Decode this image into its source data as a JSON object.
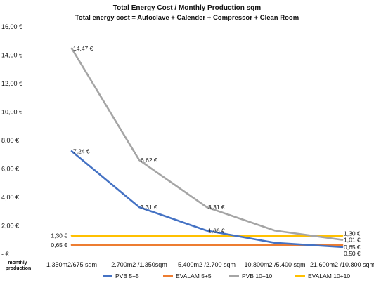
{
  "chart_data": {
    "type": "line",
    "title": "Total Energy Cost / Monthly Production sqm",
    "subtitle": "Total energy cost = Autoclave + Calender + Compressor + Clean Room",
    "xlabel": "monthly production",
    "ylabel": "",
    "categories": [
      "1.350m2/675 sqm",
      "2.700m2 /1.350sqm",
      "5.400m2 /2.700 sqm",
      "10.800m2 /5.400 sqm",
      "21.600m2 /10.800 sqm"
    ],
    "ylim": [
      0,
      16
    ],
    "yticks": [
      0,
      2,
      4,
      6,
      8,
      10,
      12,
      14,
      16
    ],
    "ytick_labels": [
      "-   €",
      "2,00 €",
      "4,00 €",
      "6,00 €",
      "8,00 €",
      "10,00 €",
      "12,00 €",
      "14,00 €",
      "16,00 €"
    ],
    "grid": false,
    "legend_position": "bottom",
    "series": [
      {
        "name": "PVB 5+5",
        "color": "#4472C4",
        "values": [
          7.24,
          3.31,
          1.66,
          0.8,
          0.5
        ],
        "point_labels": [
          "7,24 €",
          "3,31 €",
          "1,66 €",
          "",
          "0,50 €"
        ]
      },
      {
        "name": "EVALAM 5+5",
        "color": "#ED7D31",
        "values": [
          0.65,
          0.65,
          0.65,
          0.65,
          0.65
        ],
        "point_labels": [
          "0,65 €",
          "",
          "",
          "",
          "0,65 €"
        ]
      },
      {
        "name": "PVB 10+10",
        "color": "#A5A5A5",
        "values": [
          14.47,
          6.62,
          3.31,
          1.66,
          1.01
        ],
        "point_labels": [
          "14,47 €",
          "6,62 €",
          "3,31 €",
          "",
          "1,01 €"
        ]
      },
      {
        "name": "EVALAM 10+10",
        "color": "#FFC000",
        "values": [
          1.3,
          1.3,
          1.3,
          1.3,
          1.3
        ],
        "point_labels": [
          "1,30 €",
          "",
          "",
          "",
          "1,30 €"
        ]
      }
    ]
  }
}
